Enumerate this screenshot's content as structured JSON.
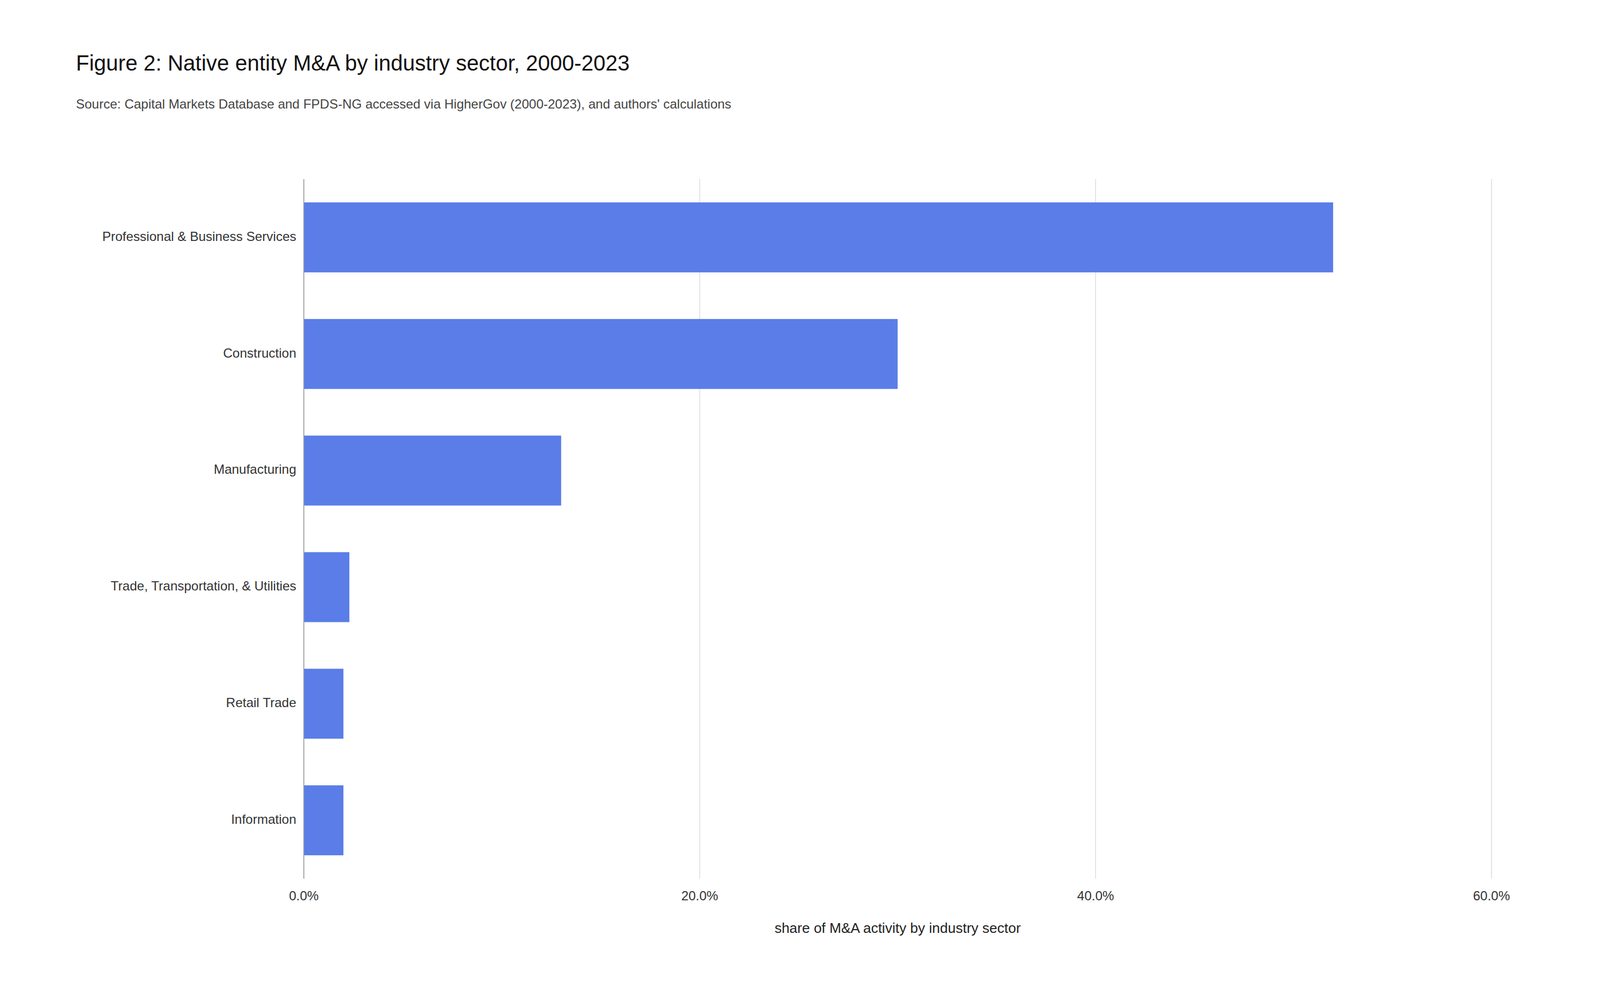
{
  "chart_data": {
    "type": "bar",
    "orientation": "horizontal",
    "title": "Figure 2: Native entity M&A by industry sector, 2000-2023",
    "subtitle": "Source: Capital Markets Database and FPDS-NG accessed via HigherGov (2000-2023), and authors' calculations",
    "categories": [
      "Information",
      "Retail Trade",
      "Trade, Transportation, & Utilities",
      "Manufacturing",
      "Construction",
      "Professional & Business Services"
    ],
    "values": [
      2.0,
      2.0,
      2.3,
      13.0,
      30.0,
      52.0
    ],
    "color": "#5a7de8",
    "xlabel": "share of M&A activity by industry sector",
    "xlim": [
      0,
      60
    ],
    "xticks": [
      {
        "value": 0,
        "label": "0.0%"
      },
      {
        "value": 20,
        "label": "20.0%"
      },
      {
        "value": 40,
        "label": "40.0%"
      },
      {
        "value": 60,
        "label": "60.0%"
      }
    ],
    "grid": true
  }
}
